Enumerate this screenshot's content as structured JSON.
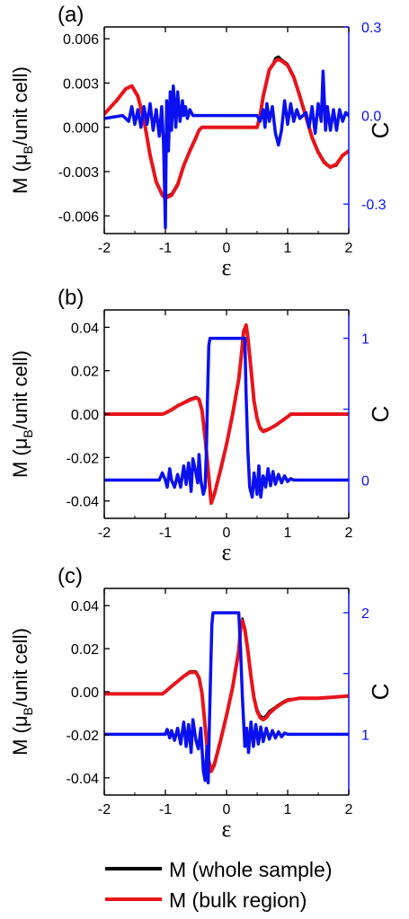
{
  "figure": {
    "xlabel": "ε",
    "left_ylabel_parts": [
      "M (μ",
      "B",
      "/unit cell)"
    ],
    "right_ylabel": "C"
  },
  "legend": {
    "items": [
      {
        "label": "M (whole sample)",
        "color": "#000000"
      },
      {
        "label": "M (bulk region)",
        "color": "#e8141c"
      }
    ]
  },
  "colors": {
    "whole": "#000000",
    "bulk": "#e8141c",
    "chern": "#0a10f0"
  },
  "chart_data": [
    {
      "type": "line",
      "panel_label": "(a)",
      "xlabel": "ε",
      "xlim": [
        -2,
        2
      ],
      "xticks": [
        "-2",
        "-1",
        "0",
        "1",
        "2"
      ],
      "ylabel": "M (μB/unit cell)",
      "ylim": [
        -0.0072,
        0.0068
      ],
      "yticks": [
        {
          "value": 0.006,
          "label": "0.006"
        },
        {
          "value": 0.003,
          "label": "0.003"
        },
        {
          "value": 0.0,
          "label": "0.000"
        },
        {
          "value": -0.003,
          "label": "-0.003"
        },
        {
          "value": -0.006,
          "label": "-0.006"
        }
      ],
      "y2label": "C",
      "y2lim": [
        -0.4,
        0.3
      ],
      "y2ticks": [
        {
          "value": 0.3,
          "label": "0.3"
        },
        {
          "value": 0.0,
          "label": "0.0"
        },
        {
          "value": -0.3,
          "label": "-0.3"
        }
      ],
      "series": [
        {
          "name": "M (whole sample)",
          "axis": "left",
          "color": "#000000",
          "x": [
            -2,
            -1.8,
            -1.65,
            -1.55,
            -1.45,
            -1.35,
            -1.25,
            -1.15,
            -1.05,
            -1.0,
            -0.9,
            -0.8,
            -0.7,
            -0.6,
            -0.5,
            -0.45,
            -0.4,
            0.0,
            0.5,
            0.55,
            0.6,
            0.7,
            0.8,
            0.85,
            0.9,
            1.0,
            1.1,
            1.2,
            1.3,
            1.4,
            1.5,
            1.6,
            1.7,
            1.8,
            1.9,
            2.0
          ],
          "y": [
            0.0009,
            0.0018,
            0.0026,
            0.0028,
            0.0022,
            0.0006,
            -0.0018,
            -0.0036,
            -0.0045,
            -0.0047,
            -0.0045,
            -0.0038,
            -0.0025,
            -0.0015,
            -0.0006,
            -0.0002,
            0.0,
            0.0,
            0.0,
            0.0008,
            0.002,
            0.0038,
            0.0047,
            0.0048,
            0.0046,
            0.0043,
            0.0035,
            0.0022,
            0.0008,
            -0.0006,
            -0.0016,
            -0.0023,
            -0.0027,
            -0.0026,
            -0.0019,
            -0.0016
          ]
        },
        {
          "name": "M (bulk region)",
          "axis": "left",
          "color": "#e8141c",
          "x": [
            -2,
            -1.8,
            -1.65,
            -1.55,
            -1.45,
            -1.35,
            -1.25,
            -1.15,
            -1.05,
            -1.0,
            -0.9,
            -0.8,
            -0.7,
            -0.6,
            -0.5,
            -0.45,
            -0.4,
            0.0,
            0.5,
            0.55,
            0.6,
            0.7,
            0.8,
            0.85,
            0.9,
            1.0,
            1.1,
            1.2,
            1.3,
            1.4,
            1.5,
            1.6,
            1.7,
            1.8,
            1.9,
            2.0
          ],
          "y": [
            0.0009,
            0.0018,
            0.0026,
            0.0028,
            0.0021,
            0.0005,
            -0.0019,
            -0.0037,
            -0.0046,
            -0.0048,
            -0.0046,
            -0.0039,
            -0.0026,
            -0.0016,
            -0.0007,
            -0.0002,
            0.0,
            0.0,
            0.0,
            0.0008,
            0.0021,
            0.0039,
            0.0045,
            0.0046,
            0.0045,
            0.0042,
            0.0034,
            0.0021,
            0.0007,
            -0.0007,
            -0.0017,
            -0.0024,
            -0.0027,
            -0.0025,
            -0.0019,
            -0.0016
          ]
        },
        {
          "name": "C",
          "axis": "right",
          "color": "#0a10f0",
          "x": [
            -2,
            -1.7,
            -1.6,
            -1.55,
            -1.5,
            -1.45,
            -1.4,
            -1.35,
            -1.3,
            -1.25,
            -1.2,
            -1.15,
            -1.1,
            -1.06,
            -1.03,
            -1.0,
            -0.98,
            -0.95,
            -0.92,
            -0.9,
            -0.87,
            -0.83,
            -0.8,
            -0.76,
            -0.72,
            -0.7,
            -0.67,
            -0.64,
            -0.6,
            -0.55,
            -0.5,
            0.5,
            0.55,
            0.6,
            0.63,
            0.66,
            0.7,
            0.75,
            0.8,
            0.85,
            0.9,
            0.95,
            1.0,
            1.05,
            1.1,
            1.15,
            1.2,
            1.3,
            1.35,
            1.4,
            1.45,
            1.5,
            1.55,
            1.58,
            1.62,
            1.65,
            1.7,
            1.75,
            1.8,
            1.85,
            1.9,
            1.95,
            2.0
          ],
          "y": [
            -0.01,
            0.0,
            -0.02,
            0.03,
            -0.03,
            0.02,
            -0.04,
            0.03,
            -0.03,
            0.04,
            -0.05,
            0.02,
            -0.07,
            0.03,
            -0.1,
            -0.38,
            0.05,
            -0.12,
            0.08,
            -0.05,
            0.1,
            -0.04,
            0.08,
            -0.02,
            0.05,
            0.0,
            0.03,
            -0.01,
            0.02,
            0.0,
            0.0,
            0.0,
            -0.02,
            0.02,
            -0.04,
            0.04,
            -0.02,
            0.03,
            -0.06,
            -0.1,
            -0.05,
            0.05,
            -0.03,
            0.04,
            -0.02,
            0.02,
            -0.01,
            0.01,
            -0.04,
            0.03,
            -0.06,
            0.04,
            -0.02,
            0.15,
            -0.05,
            0.03,
            -0.05,
            0.02,
            -0.05,
            0.02,
            -0.02,
            0.01,
            0.0
          ]
        }
      ]
    },
    {
      "type": "line",
      "panel_label": "(b)",
      "xlabel": "ε",
      "xlim": [
        -2,
        2
      ],
      "xticks": [
        "-2",
        "-1",
        "0",
        "1",
        "2"
      ],
      "ylabel": "M (μB/unit cell)",
      "ylim": [
        -0.048,
        0.048
      ],
      "yticks": [
        {
          "value": 0.04,
          "label": "0.04"
        },
        {
          "value": 0.02,
          "label": "0.02"
        },
        {
          "value": 0.0,
          "label": "0.00"
        },
        {
          "value": -0.02,
          "label": "-0.02"
        },
        {
          "value": -0.04,
          "label": "-0.04"
        }
      ],
      "y2label": "C",
      "y2lim": [
        -0.27,
        1.2
      ],
      "y2ticks": [
        {
          "value": 1,
          "label": "1"
        },
        {
          "value": 0.5,
          "label": ""
        },
        {
          "value": 0,
          "label": "0"
        }
      ],
      "series": [
        {
          "name": "M (whole sample)",
          "axis": "left",
          "color": "#000000",
          "x": [
            -2,
            -1.05,
            -1.0,
            -0.9,
            -0.8,
            -0.7,
            -0.6,
            -0.5,
            -0.45,
            -0.4,
            -0.35,
            -0.3,
            -0.25,
            -0.2,
            -0.1,
            0.0,
            0.1,
            0.2,
            0.25,
            0.28,
            0.32,
            0.35,
            0.4,
            0.45,
            0.5,
            0.55,
            0.6,
            0.65,
            0.7,
            0.8,
            0.9,
            1.0,
            1.05,
            2.0
          ],
          "y": [
            0.0,
            0.0,
            0.0005,
            0.002,
            0.004,
            0.0055,
            0.007,
            0.008,
            0.0072,
            0.002,
            -0.01,
            -0.025,
            -0.04,
            -0.036,
            -0.025,
            -0.013,
            0.0,
            0.015,
            0.028,
            0.037,
            0.04,
            0.034,
            0.02,
            0.005,
            -0.002,
            -0.006,
            -0.0075,
            -0.007,
            -0.0065,
            -0.005,
            -0.003,
            -0.001,
            0.0,
            0.0
          ]
        },
        {
          "name": "M (bulk region)",
          "axis": "left",
          "color": "#e8141c",
          "x": [
            -2,
            -1.05,
            -1.0,
            -0.9,
            -0.8,
            -0.7,
            -0.6,
            -0.5,
            -0.45,
            -0.4,
            -0.35,
            -0.3,
            -0.25,
            -0.2,
            -0.1,
            0.0,
            0.1,
            0.2,
            0.25,
            0.28,
            0.32,
            0.35,
            0.4,
            0.45,
            0.5,
            0.55,
            0.6,
            0.65,
            0.7,
            0.8,
            0.9,
            1.0,
            1.05,
            2.0
          ],
          "y": [
            0.0,
            0.0,
            0.0005,
            0.002,
            0.0038,
            0.0052,
            0.0065,
            0.0075,
            0.0068,
            0.0015,
            -0.011,
            -0.026,
            -0.041,
            -0.037,
            -0.026,
            -0.014,
            0.0,
            0.016,
            0.029,
            0.038,
            0.041,
            0.035,
            0.021,
            0.006,
            -0.002,
            -0.0065,
            -0.008,
            -0.0075,
            -0.0068,
            -0.0052,
            -0.0032,
            -0.0012,
            0.0,
            0.0
          ]
        },
        {
          "name": "C",
          "axis": "right",
          "color": "#0a10f0",
          "x": [
            -2,
            -1.1,
            -1.05,
            -1.0,
            -0.97,
            -0.93,
            -0.9,
            -0.85,
            -0.8,
            -0.75,
            -0.7,
            -0.66,
            -0.62,
            -0.58,
            -0.55,
            -0.5,
            -0.47,
            -0.45,
            -0.42,
            -0.38,
            -0.35,
            -0.33,
            -0.31,
            -0.29,
            -0.27,
            0.3,
            0.32,
            0.35,
            0.38,
            0.42,
            0.45,
            0.5,
            0.53,
            0.56,
            0.6,
            0.64,
            0.68,
            0.72,
            0.76,
            0.8,
            0.85,
            0.9,
            0.95,
            1.0,
            1.05,
            1.1,
            2.0
          ],
          "y": [
            0.0,
            0.0,
            0.05,
            0.0,
            -0.05,
            0.08,
            0.0,
            -0.05,
            0.04,
            -0.05,
            0.1,
            -0.03,
            0.12,
            -0.08,
            0.15,
            0.05,
            -0.02,
            0.18,
            0.0,
            -0.1,
            -0.05,
            0.2,
            0.6,
            0.95,
            1.0,
            1.0,
            0.6,
            0.2,
            -0.05,
            -0.12,
            0.05,
            -0.1,
            0.1,
            -0.12,
            0.03,
            -0.05,
            0.08,
            -0.04,
            0.06,
            -0.03,
            0.04,
            -0.02,
            0.03,
            -0.01,
            0.01,
            0.0,
            0.0
          ]
        }
      ]
    },
    {
      "type": "line",
      "panel_label": "(c)",
      "xlabel": "ε",
      "xlim": [
        -2,
        2
      ],
      "xticks": [
        "-2",
        "-1",
        "0",
        "1",
        "2"
      ],
      "ylabel": "M (μB/unit cell)",
      "ylim": [
        -0.048,
        0.048
      ],
      "yticks": [
        {
          "value": 0.04,
          "label": "0.04"
        },
        {
          "value": 0.02,
          "label": "0.02"
        },
        {
          "value": 0.0,
          "label": "0.00"
        },
        {
          "value": -0.02,
          "label": "-0.02"
        },
        {
          "value": -0.04,
          "label": "-0.04"
        }
      ],
      "y2label": "C",
      "y2lim": [
        0.5,
        2.2
      ],
      "y2ticks": [
        {
          "value": 2,
          "label": "2"
        },
        {
          "value": 1.5,
          "label": ""
        },
        {
          "value": 1,
          "label": "1"
        }
      ],
      "series": [
        {
          "name": "M (whole sample)",
          "axis": "left",
          "color": "#000000",
          "x": [
            -2,
            -1.05,
            -1.0,
            -0.9,
            -0.8,
            -0.7,
            -0.6,
            -0.5,
            -0.45,
            -0.4,
            -0.35,
            -0.3,
            -0.25,
            -0.2,
            -0.1,
            0.0,
            0.1,
            0.2,
            0.23,
            0.26,
            0.3,
            0.35,
            0.4,
            0.45,
            0.5,
            0.55,
            0.6,
            0.65,
            0.7,
            0.8,
            0.9,
            1.0,
            1.2,
            1.5,
            2.0
          ],
          "y": [
            -0.001,
            -0.001,
            0.0,
            0.0025,
            0.005,
            0.0075,
            0.0095,
            0.0095,
            0.007,
            0.0,
            -0.015,
            -0.03,
            -0.036,
            -0.033,
            -0.022,
            -0.01,
            0.003,
            0.02,
            0.03,
            0.034,
            0.03,
            0.02,
            0.008,
            -0.002,
            -0.008,
            -0.011,
            -0.012,
            -0.011,
            -0.009,
            -0.007,
            -0.005,
            -0.0035,
            -0.003,
            -0.003,
            -0.002
          ]
        },
        {
          "name": "M (bulk region)",
          "axis": "left",
          "color": "#e8141c",
          "x": [
            -2,
            -1.05,
            -1.0,
            -0.9,
            -0.8,
            -0.7,
            -0.6,
            -0.5,
            -0.45,
            -0.4,
            -0.35,
            -0.3,
            -0.25,
            -0.2,
            -0.1,
            0.0,
            0.1,
            0.2,
            0.23,
            0.26,
            0.3,
            0.35,
            0.4,
            0.45,
            0.5,
            0.55,
            0.6,
            0.65,
            0.7,
            0.8,
            0.9,
            1.0,
            1.2,
            1.5,
            2.0
          ],
          "y": [
            -0.001,
            -0.001,
            0.0,
            0.0025,
            0.0048,
            0.0072,
            0.009,
            0.009,
            0.0065,
            -0.001,
            -0.016,
            -0.031,
            -0.037,
            -0.034,
            -0.023,
            -0.011,
            0.002,
            0.019,
            0.029,
            0.033,
            0.029,
            0.019,
            0.007,
            -0.003,
            -0.009,
            -0.012,
            -0.013,
            -0.012,
            -0.01,
            -0.0075,
            -0.0055,
            -0.004,
            -0.003,
            -0.003,
            -0.002
          ]
        },
        {
          "name": "C",
          "axis": "right",
          "color": "#0a10f0",
          "x": [
            -2,
            -1.0,
            -0.97,
            -0.93,
            -0.9,
            -0.85,
            -0.8,
            -0.75,
            -0.7,
            -0.66,
            -0.62,
            -0.58,
            -0.55,
            -0.5,
            -0.46,
            -0.42,
            -0.38,
            -0.35,
            -0.32,
            -0.3,
            -0.28,
            -0.26,
            -0.24,
            -0.22,
            -0.2,
            0.2,
            0.23,
            0.26,
            0.3,
            0.33,
            0.36,
            0.4,
            0.44,
            0.48,
            0.52,
            0.56,
            0.6,
            0.65,
            0.7,
            0.75,
            0.8,
            0.85,
            0.9,
            0.95,
            1.0,
            2.0
          ],
          "y": [
            1.0,
            1.0,
            1.04,
            0.97,
            1.03,
            0.95,
            1.05,
            0.92,
            1.1,
            0.9,
            1.08,
            0.85,
            1.12,
            0.95,
            0.88,
            1.05,
            0.7,
            0.62,
            0.9,
            0.6,
            1.1,
            1.5,
            1.9,
            2.0,
            2.0,
            2.0,
            1.7,
            1.3,
            0.9,
            1.05,
            0.85,
            1.1,
            0.9,
            1.08,
            0.92,
            1.06,
            0.94,
            1.05,
            0.96,
            1.03,
            0.97,
            1.02,
            0.98,
            1.01,
            1.0,
            1.0
          ]
        }
      ]
    }
  ]
}
